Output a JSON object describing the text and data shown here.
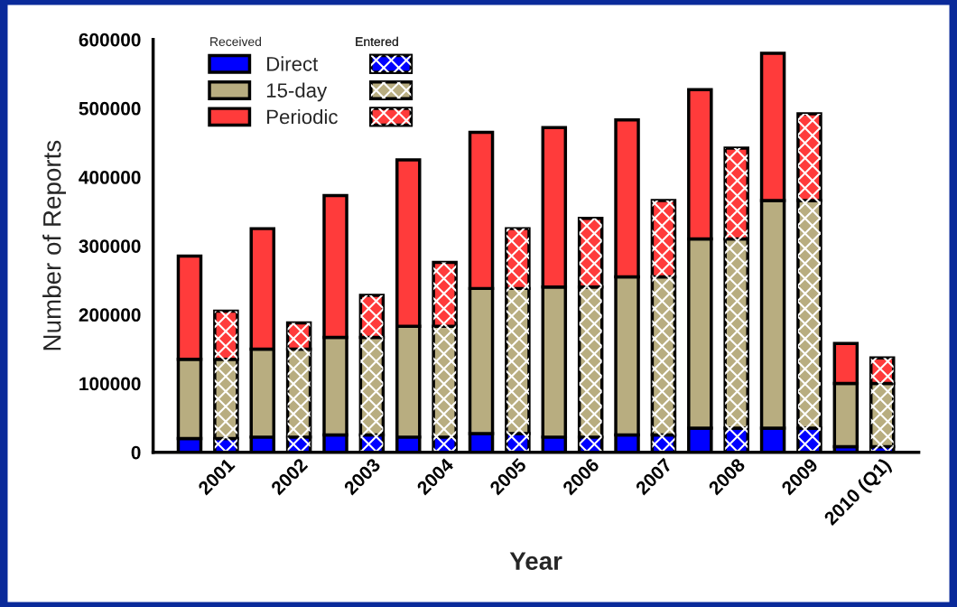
{
  "chart_data": {
    "type": "bar",
    "stacked": true,
    "ylabel": "Number of Reports",
    "xlabel": "Year",
    "annotations": [
      "Received",
      "Entered"
    ],
    "categories": [
      null,
      "2001",
      null,
      "2002",
      null,
      "2003",
      null,
      "2004",
      null,
      "2005",
      null,
      "2006",
      null,
      "2007",
      null,
      "2008",
      null,
      "2009",
      null,
      "2010 (Q1)"
    ],
    "series": [
      {
        "name": "Direct",
        "color": "#0000ff",
        "values": [
          20000,
          null,
          22000,
          null,
          25000,
          null,
          22000,
          null,
          27000,
          null,
          22000,
          null,
          25000,
          null,
          35000,
          null,
          35000,
          null,
          8000,
          null
        ]
      },
      {
        "name": "15-day",
        "color": "#b8ad80",
        "values": [
          115000,
          null,
          128000,
          null,
          142000,
          null,
          161000,
          null,
          211000,
          null,
          218000,
          null,
          230000,
          null,
          275000,
          null,
          331000,
          null,
          92000,
          null
        ]
      },
      {
        "name": "Periodic",
        "color": "#ff3b3b",
        "values": [
          150000,
          null,
          175000,
          null,
          206000,
          null,
          242000,
          null,
          227000,
          null,
          232000,
          null,
          228000,
          null,
          217000,
          null,
          214000,
          null,
          58000,
          null
        ]
      },
      {
        "color": "#0000ff",
        "values": [
          null,
          20000,
          null,
          22000,
          null,
          25000,
          null,
          22000,
          null,
          27000,
          null,
          22000,
          null,
          25000,
          null,
          35000,
          null,
          35000,
          null,
          8000
        ]
      },
      {
        "color": "#b8ad80",
        "values": [
          null,
          115000,
          null,
          128000,
          null,
          142000,
          null,
          161000,
          null,
          211000,
          null,
          218000,
          null,
          230000,
          null,
          275000,
          null,
          331000,
          null,
          92000
        ]
      },
      {
        "color": "#ff3b3b",
        "values": [
          null,
          70000,
          null,
          38000,
          null,
          61000,
          null,
          93000,
          null,
          87000,
          null,
          100000,
          null,
          111000,
          null,
          132000,
          null,
          126000,
          null,
          37000
        ]
      }
    ],
    "ylim": [
      0,
      600000
    ],
    "yticks": [
      0,
      100000,
      200000,
      300000,
      400000,
      500000,
      600000
    ],
    "legend": "top left"
  }
}
